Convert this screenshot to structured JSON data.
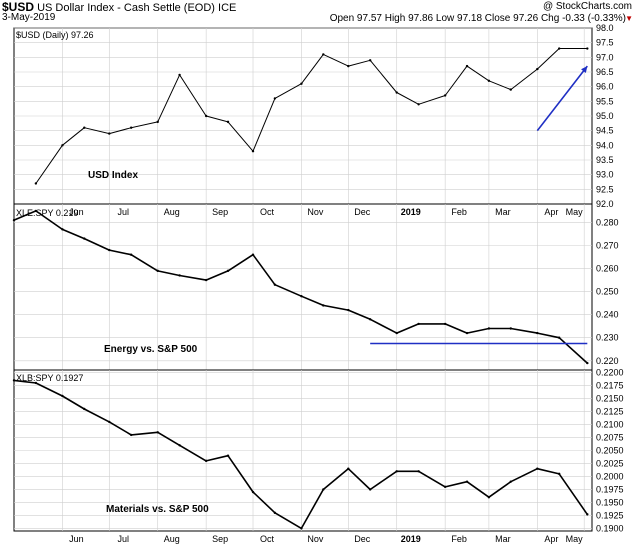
{
  "header": {
    "symbol": "$USD",
    "description": "US Dollar Index - Cash Settle (EOD) ICE",
    "date": "3-May-2019",
    "brand": "@ StockCharts.com",
    "ohlc": "Open 97.57  High 97.86  Low 97.18  Close 97.26  Chg -0.33 (-0.33%)",
    "chg_arrow": "▼"
  },
  "x_axis": {
    "labels": [
      "Jun",
      "Jul",
      "Aug",
      "Sep",
      "Oct",
      "Nov",
      "Dec",
      "2019",
      "Feb",
      "Mar",
      "Apr",
      "May"
    ]
  },
  "colors": {
    "price": "#000000",
    "annotation": "#1f2fc4",
    "grid": "#cfcfcf"
  },
  "chart_data": [
    {
      "type": "line",
      "legend": "$USD (Daily) 97.26",
      "annotation": "USD Index",
      "ylim": [
        92.0,
        98.0
      ],
      "tick_labels": [
        "98.0",
        "97.5",
        "97.0",
        "96.5",
        "96.0",
        "95.5",
        "95.0",
        "94.5",
        "94.0",
        "93.5",
        "93.0",
        "92.5",
        "92.0"
      ],
      "x": [
        "2018-05-15",
        "2018-06-01",
        "2018-06-15",
        "2018-07-01",
        "2018-07-15",
        "2018-08-01",
        "2018-08-15",
        "2018-09-01",
        "2018-09-15",
        "2018-10-01",
        "2018-10-15",
        "2018-11-01",
        "2018-11-15",
        "2018-12-01",
        "2018-12-15",
        "2019-01-01",
        "2019-01-15",
        "2019-02-01",
        "2019-02-15",
        "2019-03-01",
        "2019-03-15",
        "2019-04-01",
        "2019-04-15",
        "2019-05-03"
      ],
      "values": [
        92.7,
        94.0,
        94.6,
        94.4,
        94.6,
        94.8,
        96.4,
        95.0,
        94.8,
        93.8,
        95.6,
        96.1,
        97.1,
        96.7,
        96.9,
        95.8,
        95.4,
        95.7,
        96.7,
        96.2,
        95.9,
        96.6,
        97.3,
        97.3
      ],
      "arrow": {
        "from": [
          "2019-04-01",
          94.5
        ],
        "to": [
          "2019-05-03",
          96.7
        ]
      }
    },
    {
      "type": "line",
      "legend": "XLE:SPY 0.219",
      "annotation": "Energy vs. S&P 500",
      "ylim": [
        0.216,
        0.288
      ],
      "tick_labels": [
        "0.280",
        "0.270",
        "0.260",
        "0.250",
        "0.240",
        "0.230",
        "0.220"
      ],
      "x": [
        "2018-05-01",
        "2018-05-15",
        "2018-06-01",
        "2018-06-15",
        "2018-07-01",
        "2018-07-15",
        "2018-08-01",
        "2018-08-15",
        "2018-09-01",
        "2018-09-15",
        "2018-10-01",
        "2018-10-15",
        "2018-11-01",
        "2018-11-15",
        "2018-12-01",
        "2018-12-15",
        "2019-01-01",
        "2019-01-15",
        "2019-02-01",
        "2019-02-15",
        "2019-03-01",
        "2019-03-15",
        "2019-04-01",
        "2019-04-15",
        "2019-05-03"
      ],
      "values": [
        0.281,
        0.285,
        0.277,
        0.273,
        0.268,
        0.266,
        0.259,
        0.257,
        0.255,
        0.259,
        0.266,
        0.253,
        0.248,
        0.244,
        0.242,
        0.238,
        0.232,
        0.236,
        0.236,
        0.232,
        0.234,
        0.234,
        0.232,
        0.23,
        0.219
      ],
      "hline": {
        "value": 0.2275,
        "from": "2018-12-15",
        "to": "2019-05-03"
      }
    },
    {
      "type": "line",
      "legend": "XLB:SPY 0.1927",
      "annotation": "Materials vs. S&P 500",
      "ylim": [
        0.1895,
        0.2205
      ],
      "tick_labels": [
        "0.2200",
        "0.2175",
        "0.2150",
        "0.2125",
        "0.2100",
        "0.2075",
        "0.2050",
        "0.2025",
        "0.2000",
        "0.1975",
        "0.1950",
        "0.1925",
        "0.1900"
      ],
      "x": [
        "2018-05-01",
        "2018-05-15",
        "2018-06-01",
        "2018-06-15",
        "2018-07-01",
        "2018-07-15",
        "2018-08-01",
        "2018-08-15",
        "2018-09-01",
        "2018-09-15",
        "2018-10-01",
        "2018-10-15",
        "2018-11-01",
        "2018-11-15",
        "2018-12-01",
        "2018-12-15",
        "2019-01-01",
        "2019-01-15",
        "2019-02-01",
        "2019-02-15",
        "2019-03-01",
        "2019-03-15",
        "2019-04-01",
        "2019-04-15",
        "2019-05-03"
      ],
      "values": [
        0.2185,
        0.218,
        0.2155,
        0.213,
        0.2105,
        0.208,
        0.2085,
        0.206,
        0.203,
        0.204,
        0.197,
        0.193,
        0.19,
        0.1975,
        0.2015,
        0.1975,
        0.201,
        0.201,
        0.198,
        0.199,
        0.196,
        0.199,
        0.2015,
        0.2005,
        0.1927
      ]
    }
  ]
}
